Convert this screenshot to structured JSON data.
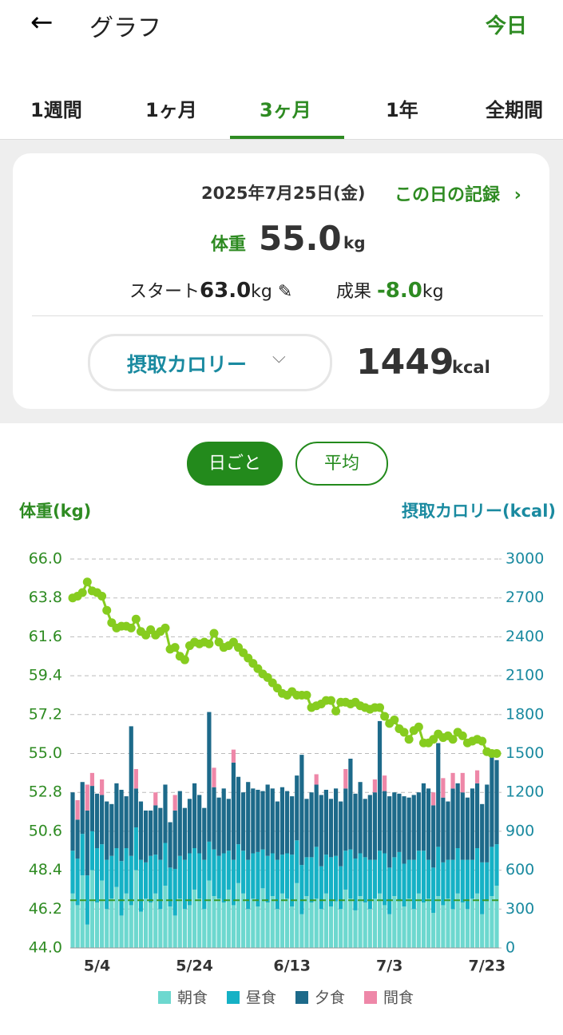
{
  "header": {
    "title": "グラフ",
    "today": "今日"
  },
  "tabs": [
    "1週間",
    "1ヶ月",
    "3ヶ月",
    "1年",
    "全期間"
  ],
  "card": {
    "date": "2025年7月25日(金)",
    "record_link": "この日の記録",
    "weight_label": "体重",
    "weight": "55.0",
    "weight_unit": "kg",
    "start_label": "スタート",
    "start": "63.0",
    "start_unit": "kg",
    "result_label": "成果",
    "result": "-8.0",
    "result_unit": "kg",
    "metric": "摂取カロリー",
    "metric_value": "1449",
    "metric_unit": "kcal"
  },
  "toggle": [
    "日ごと",
    "平均"
  ],
  "chart_data": {
    "type": "combo",
    "y_label": "体重(kg)",
    "y2_label": "摂取カロリー(kcal)",
    "categories": [
      null,
      null,
      null,
      null,
      null,
      "5/4",
      null,
      null,
      null,
      null,
      null,
      null,
      null,
      null,
      null,
      null,
      null,
      null,
      null,
      null,
      null,
      null,
      null,
      null,
      null,
      "5/24",
      null,
      null,
      null,
      null,
      null,
      null,
      null,
      null,
      null,
      null,
      null,
      null,
      null,
      null,
      null,
      null,
      null,
      null,
      null,
      "6/13",
      null,
      null,
      null,
      null,
      null,
      null,
      null,
      null,
      null,
      null,
      null,
      null,
      null,
      null,
      null,
      null,
      null,
      null,
      null,
      "7/3",
      null,
      null,
      null,
      null,
      null,
      null,
      null,
      null,
      null,
      null,
      null,
      null,
      null,
      null,
      null,
      null,
      null,
      null,
      null,
      "7/23",
      null,
      null
    ],
    "ylim": [
      44,
      66
    ],
    "yticks": [
      {
        "value": 44,
        "label": "44.0"
      },
      46.2,
      48.4,
      50.6,
      52.8,
      {
        "value": 55,
        "label": "55.0"
      },
      57.2,
      59.4,
      61.6,
      63.8,
      {
        "value": 66,
        "label": "66.0"
      }
    ],
    "y2lim": [
      0,
      3000
    ],
    "y2ticks": [
      0,
      300,
      600,
      900,
      1200,
      1500,
      1800,
      2100,
      2400,
      2700,
      3000
    ],
    "grid": true,
    "reference_line": 46.7,
    "reference_color": "#3a9a2a",
    "series": [
      {
        "name": "朝食",
        "color": "#6dd8cf",
        "axis": "y2",
        "kind": "bar",
        "values": [
          420,
          330,
          560,
          180,
          600,
          350,
          520,
          300,
          380,
          470,
          250,
          420,
          330,
          600,
          280,
          380,
          350,
          420,
          300,
          480,
          320,
          250,
          380,
          300,
          330,
          450,
          380,
          300,
          520,
          400,
          380,
          350,
          450,
          330,
          500,
          420,
          300,
          380,
          320,
          460,
          350,
          400,
          300,
          420,
          380,
          320,
          500,
          260,
          400,
          350,
          380,
          300,
          420,
          320,
          360,
          300,
          450,
          380,
          290,
          400,
          350,
          300,
          380,
          420,
          330,
          260,
          400,
          360,
          320,
          380,
          300,
          420,
          350,
          380,
          270,
          400,
          330,
          380,
          300,
          420,
          350,
          300,
          380,
          420,
          260,
          360,
          400,
          480
        ]
      },
      {
        "name": "昼食",
        "color": "#15b1c5",
        "axis": "y2",
        "kind": "bar",
        "values": [
          330,
          360,
          320,
          380,
          300,
          420,
          280,
          380,
          330,
          300,
          420,
          350,
          380,
          330,
          400,
          280,
          360,
          300,
          380,
          330,
          300,
          360,
          330,
          380,
          400,
          320,
          350,
          380,
          300,
          360,
          330,
          380,
          300,
          350,
          300,
          330,
          380,
          350,
          420,
          300,
          360,
          330,
          380,
          300,
          350,
          400,
          330,
          380,
          300,
          350,
          400,
          330,
          300,
          380,
          350,
          330,
          300,
          380,
          400,
          330,
          350,
          380,
          300,
          330,
          400,
          360,
          300,
          380,
          330,
          300,
          380,
          330,
          400,
          300,
          350,
          380,
          330,
          300,
          380,
          350,
          330,
          380,
          300,
          350,
          400,
          300,
          380,
          320
        ]
      },
      {
        "name": "夕食",
        "color": "#1d6a8a",
        "axis": "y2",
        "kind": "bar",
        "values": [
          450,
          300,
          400,
          500,
          350,
          420,
          380,
          450,
          400,
          500,
          550,
          400,
          1000,
          300,
          450,
          400,
          350,
          380,
          400,
          450,
          350,
          450,
          500,
          400,
          420,
          500,
          450,
          400,
          1000,
          480,
          450,
          500,
          400,
          750,
          520,
          450,
          600,
          500,
          480,
          450,
          550,
          500,
          450,
          520,
          480,
          450,
          500,
          850,
          450,
          500,
          480,
          550,
          500,
          450,
          520,
          500,
          480,
          700,
          500,
          550,
          450,
          500,
          520,
          1000,
          480,
          550,
          500,
          450,
          520,
          480,
          500,
          450,
          520,
          550,
          480,
          800,
          500,
          450,
          550,
          500,
          520,
          480,
          550,
          500,
          450,
          600,
          700,
          649
        ]
      },
      {
        "name": "間食",
        "color": "#ee87a8",
        "axis": "y2",
        "kind": "bar",
        "values": [
          0,
          150,
          0,
          200,
          100,
          0,
          120,
          0,
          0,
          0,
          0,
          0,
          0,
          150,
          0,
          0,
          0,
          100,
          0,
          0,
          0,
          120,
          0,
          0,
          0,
          0,
          0,
          0,
          0,
          150,
          0,
          0,
          0,
          100,
          0,
          0,
          0,
          0,
          0,
          0,
          0,
          0,
          0,
          0,
          0,
          0,
          0,
          0,
          0,
          0,
          80,
          0,
          0,
          0,
          0,
          0,
          150,
          0,
          0,
          0,
          0,
          0,
          100,
          0,
          120,
          0,
          0,
          0,
          0,
          0,
          0,
          0,
          0,
          0,
          100,
          0,
          150,
          0,
          120,
          0,
          150,
          0,
          0,
          100,
          0,
          0,
          0,
          0
        ]
      },
      {
        "name": "体重",
        "color": "#86cc1f",
        "axis": "y",
        "kind": "line",
        "values": [
          63.8,
          63.9,
          64.1,
          64.7,
          64.2,
          64.1,
          63.9,
          63.1,
          62.4,
          62.1,
          62.2,
          62.2,
          62.1,
          62.6,
          61.9,
          61.7,
          62.0,
          61.7,
          61.9,
          62.1,
          60.9,
          61.0,
          60.5,
          60.3,
          61.1,
          61.3,
          61.2,
          61.3,
          61.2,
          61.8,
          61.3,
          61.0,
          61.1,
          61.3,
          61.0,
          60.7,
          60.4,
          60.1,
          59.8,
          59.5,
          59.3,
          59.0,
          58.7,
          58.4,
          58.3,
          58.5,
          58.3,
          58.3,
          58.3,
          57.6,
          57.7,
          57.8,
          58.0,
          58.0,
          57.4,
          57.9,
          57.9,
          57.8,
          57.9,
          57.7,
          57.6,
          57.5,
          57.6,
          57.6,
          57.1,
          56.7,
          56.9,
          56.4,
          56.2,
          55.8,
          56.3,
          56.5,
          55.6,
          55.6,
          55.8,
          56.1,
          55.9,
          56.0,
          55.8,
          56.2,
          56.0,
          55.6,
          55.7,
          55.8,
          55.7,
          55.1,
          55.0,
          55.0
        ]
      }
    ]
  }
}
